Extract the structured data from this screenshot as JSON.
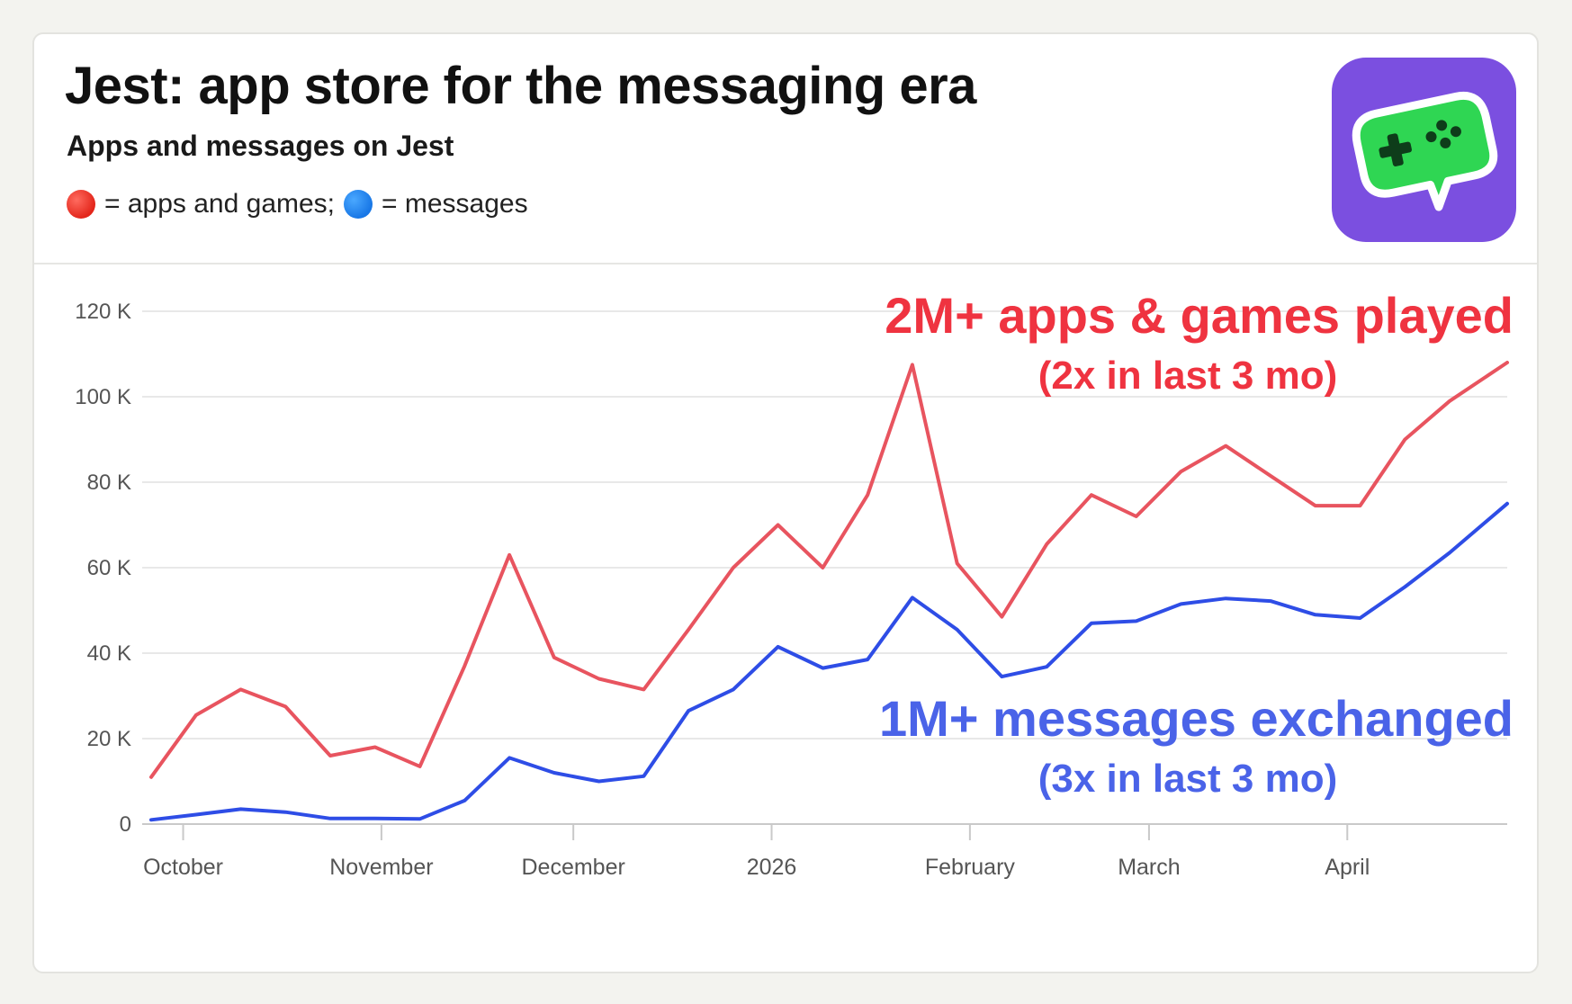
{
  "header": {
    "title": "Jest: app store for the messaging era",
    "subtitle": "Apps and messages on Jest",
    "legend": {
      "red_text": "= apps and games;",
      "blue_text": "= messages"
    },
    "logo_icon": "gamepad-chat-bubble-icon"
  },
  "annotations": {
    "red_main": "2M+ apps & games played",
    "red_sub": "(2x in last 3 mo)",
    "blue_main": "1M+ messages exchanged",
    "blue_sub": "(3x in last 3 mo)"
  },
  "colors": {
    "apps_line": "#e8545f",
    "messages_line": "#2e4de6",
    "red_annotation": "#ef3340",
    "blue_annotation": "#4a63e8",
    "logo_bg": "#7b4fe0",
    "logo_bubble": "#2fd653"
  },
  "chart_data": {
    "type": "line",
    "title": "",
    "xlabel": "",
    "ylabel": "",
    "ylim": [
      0,
      120000
    ],
    "yticks": [
      0,
      20000,
      40000,
      60000,
      80000,
      100000,
      120000
    ],
    "ytick_labels": [
      "0",
      "20 K",
      "40 K",
      "60 K",
      "80 K",
      "100 K",
      "120 K"
    ],
    "x_date_range": [
      "2025-09-26",
      "2026-04-26"
    ],
    "x": [
      "2025-09-26",
      "2025-10-03",
      "2025-10-10",
      "2025-10-17",
      "2025-10-24",
      "2025-10-31",
      "2025-11-07",
      "2025-11-14",
      "2025-11-21",
      "2025-11-28",
      "2025-12-05",
      "2025-12-12",
      "2025-12-19",
      "2025-12-26",
      "2026-01-02",
      "2026-01-09",
      "2026-01-16",
      "2026-01-23",
      "2026-01-30",
      "2026-02-06",
      "2026-02-13",
      "2026-02-20",
      "2026-02-27",
      "2026-03-06",
      "2026-03-13",
      "2026-03-20",
      "2026-03-27",
      "2026-04-03",
      "2026-04-10",
      "2026-04-17",
      "2026-04-26"
    ],
    "x_ticks": [
      {
        "date": "2025-10-01",
        "label": "October"
      },
      {
        "date": "2025-11-01",
        "label": "November"
      },
      {
        "date": "2025-12-01",
        "label": "December"
      },
      {
        "date": "2026-01-01",
        "label": "2026"
      },
      {
        "date": "2026-02-01",
        "label": "February"
      },
      {
        "date": "2026-03-01",
        "label": "March"
      },
      {
        "date": "2026-04-01",
        "label": "April"
      }
    ],
    "series": [
      {
        "color": "#e8545f",
        "values": [
          11000,
          25500,
          31500,
          27500,
          16000,
          18000,
          13500,
          37000,
          63000,
          39000,
          34000,
          31500,
          45500,
          60000,
          70000,
          60000,
          77000,
          107500,
          61000,
          48500,
          65500,
          77000,
          72000,
          82500,
          88500,
          81500,
          74500,
          74500,
          90000,
          99000,
          108000
        ]
      },
      {
        "color": "#2e4de6",
        "values": [
          1000,
          2200,
          3500,
          2800,
          1300,
          1300,
          1200,
          5500,
          15500,
          12000,
          10000,
          11200,
          26500,
          31500,
          41500,
          36500,
          38500,
          53000,
          45500,
          34500,
          36800,
          47000,
          47500,
          51500,
          52800,
          52200,
          49000,
          48200,
          55500,
          63500,
          75000
        ]
      }
    ]
  }
}
